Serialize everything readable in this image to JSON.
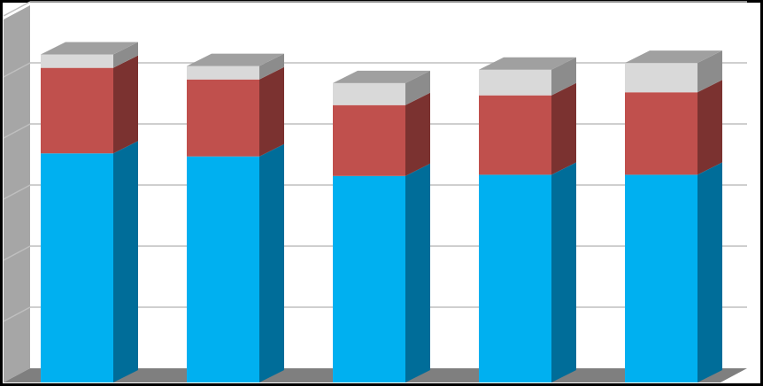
{
  "chart_data": {
    "type": "bar",
    "stacked": true,
    "three_d": true,
    "categories": [
      "",
      "",
      "",
      "",
      ""
    ],
    "series": [
      {
        "values": [
          3.75,
          3.7,
          3.38,
          3.4,
          3.4
        ],
        "color": "#00B0F0",
        "side_color": "#006D99"
      },
      {
        "values": [
          1.4,
          1.26,
          1.16,
          1.3,
          1.35
        ],
        "color": "#C0504D",
        "side_color": "#7B3230"
      },
      {
        "values": [
          0.22,
          0.22,
          0.36,
          0.42,
          0.48
        ],
        "color": "#D9D9D9",
        "side_color": "#8C8C8C"
      }
    ],
    "ylim": [
      0,
      6
    ],
    "grid": true,
    "legend": "none",
    "colors": {
      "background": "#FFFFFF",
      "frame": "#000000",
      "gridline": "#BFBFBF",
      "wall": "#A6A6A6",
      "floor": "#7F7F7F"
    }
  }
}
